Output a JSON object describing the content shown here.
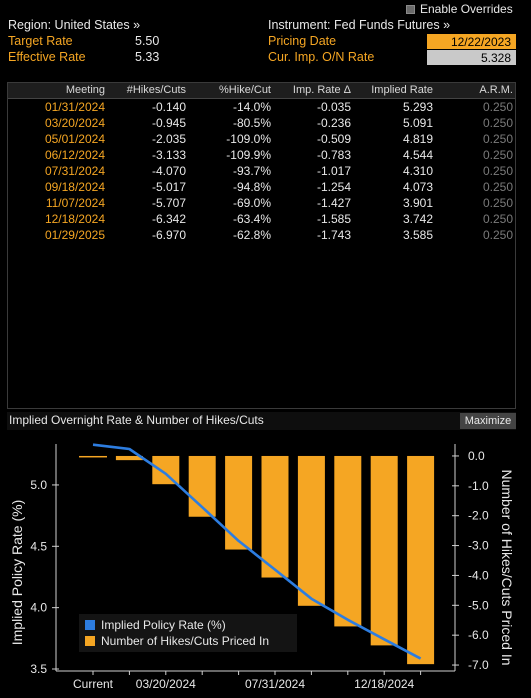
{
  "header": {
    "region": "Region: United States »",
    "instrument": "Instrument: Fed Funds Futures »",
    "enable_overrides": "Enable Overrides",
    "target_rate_label": "Target Rate",
    "target_rate_value": "5.50",
    "effective_rate_label": "Effective Rate",
    "effective_rate_value": "5.33",
    "pricing_date_label": "Pricing Date",
    "pricing_date_value": "12/22/2023",
    "cur_imp_label": "Cur. Imp. O/N Rate",
    "cur_imp_value": "5.328"
  },
  "table": {
    "columns": [
      "Meeting",
      "#Hikes/Cuts",
      "%Hike/Cut",
      "Imp. Rate Δ",
      "Implied Rate",
      "A.R.M."
    ],
    "rows": [
      [
        "01/31/2024",
        "-0.140",
        "-14.0%",
        "-0.035",
        "5.293",
        "0.250"
      ],
      [
        "03/20/2024",
        "-0.945",
        "-80.5%",
        "-0.236",
        "5.091",
        "0.250"
      ],
      [
        "05/01/2024",
        "-2.035",
        "-109.0%",
        "-0.509",
        "4.819",
        "0.250"
      ],
      [
        "06/12/2024",
        "-3.133",
        "-109.9%",
        "-0.783",
        "4.544",
        "0.250"
      ],
      [
        "07/31/2024",
        "-4.070",
        "-93.7%",
        "-1.017",
        "4.310",
        "0.250"
      ],
      [
        "09/18/2024",
        "-5.017",
        "-94.8%",
        "-1.254",
        "4.073",
        "0.250"
      ],
      [
        "11/07/2024",
        "-5.707",
        "-69.0%",
        "-1.427",
        "3.901",
        "0.250"
      ],
      [
        "12/18/2024",
        "-6.342",
        "-63.4%",
        "-1.585",
        "3.742",
        "0.250"
      ],
      [
        "01/29/2025",
        "-6.970",
        "-62.8%",
        "-1.743",
        "3.585",
        "0.250"
      ]
    ]
  },
  "chart_panel": {
    "title": "Implied Overnight Rate & Number of Hikes/Cuts",
    "maximize": "Maximize"
  },
  "chart_data": {
    "type": "bar",
    "categories": [
      "Current",
      "01/31/2024",
      "03/20/2024",
      "05/01/2024",
      "06/12/2024",
      "07/31/2024",
      "09/18/2024",
      "11/07/2024",
      "12/18/2024",
      "01/29/2025"
    ],
    "x_tick_labels": [
      "Current",
      "03/20/2024",
      "07/31/2024",
      "12/18/2024"
    ],
    "series": [
      {
        "name": "Implied Policy Rate (%)",
        "type": "line",
        "axis": "left",
        "color": "#2d7de0",
        "values": [
          5.328,
          5.293,
          5.091,
          4.819,
          4.544,
          4.31,
          4.073,
          3.901,
          3.742,
          3.585
        ]
      },
      {
        "name": "Number of Hikes/Cuts Priced In",
        "type": "bar",
        "axis": "right",
        "color": "#f5a623",
        "values": [
          0.0,
          -0.14,
          -0.945,
          -2.035,
          -3.133,
          -4.07,
          -5.017,
          -5.707,
          -6.342,
          -6.97
        ]
      }
    ],
    "ylabel": "Implied Policy Rate (%)",
    "ylabel_right": "Number of Hikes/Cuts Priced In",
    "ylim": [
      3.5,
      5.35
    ],
    "ylim_right": [
      -7.3,
      0.3
    ],
    "yticks": [
      "5.0",
      "4.5",
      "4.0",
      "3.5"
    ],
    "yticks_right": [
      "0.0",
      "-1.0",
      "-2.0",
      "-3.0",
      "-4.0",
      "-5.0",
      "-6.0",
      "-7.0"
    ],
    "legend_position": "bottom-left"
  }
}
